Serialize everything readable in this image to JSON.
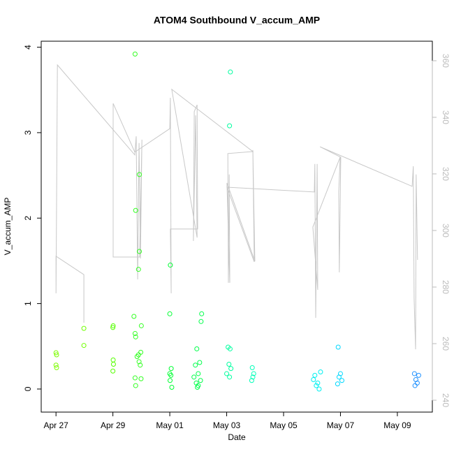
{
  "chart_data": {
    "type": "scatter",
    "title": "ATOM4 Southbound V_accum_AMP",
    "xlabel": "Date",
    "ylabel": "V_accum_AMP",
    "x": [
      0,
      0.02,
      0,
      0.02,
      0.98,
      0.98,
      2.01,
      2.0,
      2.01,
      2.02,
      2.0,
      2.78,
      2.93,
      2.8,
      2.93,
      2.9,
      2.74,
      3.0,
      2.78,
      2.8,
      2.98,
      2.9,
      2.85,
      2.92,
      2.96,
      2.78,
      2.99,
      2.8,
      4.02,
      4.0,
      4.05,
      4.0,
      4.04,
      4.01,
      4.07,
      5.12,
      5.1,
      4.95,
      5.05,
      4.9,
      5.0,
      4.85,
      5.08,
      4.93,
      5.0,
      4.97,
      6.13,
      6.1,
      6.05,
      6.12,
      6.08,
      6.15,
      6.0,
      6.1,
      6.9,
      6.95,
      6.92,
      6.88,
      9.3,
      9.1,
      9.05,
      9.2,
      9.15,
      9.25,
      9.92,
      10.0,
      9.95,
      10.05,
      9.9,
      12.6,
      12.75,
      12.65,
      12.7,
      12.62
    ],
    "values": [
      0.425,
      0.4,
      0.28,
      0.25,
      0.71,
      0.51,
      0.74,
      0.72,
      0.34,
      0.29,
      0.21,
      3.92,
      2.51,
      2.09,
      1.61,
      1.4,
      0.85,
      0.74,
      0.65,
      0.61,
      0.43,
      0.4,
      0.38,
      0.32,
      0.28,
      0.13,
      0.12,
      0.04,
      1.45,
      0.88,
      0.24,
      0.18,
      0.16,
      0.1,
      0.02,
      0.88,
      0.79,
      0.47,
      0.31,
      0.28,
      0.18,
      0.14,
      0.1,
      0.07,
      0.04,
      0.02,
      3.71,
      3.08,
      0.49,
      0.47,
      0.29,
      0.24,
      0.18,
      0.14,
      0.25,
      0.18,
      0.14,
      0.1,
      0.2,
      0.16,
      0.11,
      0.07,
      0.04,
      0,
      0.49,
      0.18,
      0.14,
      0.1,
      0.06,
      0.18,
      0.16,
      0.11,
      0.07,
      0.04
    ],
    "colors": [
      "#7cfc00",
      "#7cfc00",
      "#7cfc00",
      "#7cfc00",
      "#70ff00",
      "#70ff00",
      "#55ff00",
      "#55ff00",
      "#55ff00",
      "#55ff00",
      "#55ff00",
      "#33ff22",
      "#33ff22",
      "#33ff22",
      "#33ff22",
      "#33ff22",
      "#33ff22",
      "#33ff22",
      "#33ff22",
      "#33ff22",
      "#33ff22",
      "#33ff22",
      "#33ff22",
      "#33ff22",
      "#33ff22",
      "#33ff22",
      "#33ff22",
      "#33ff22",
      "#00ff33",
      "#00ff33",
      "#00ff33",
      "#00ff33",
      "#00ff33",
      "#00ff33",
      "#00ff33",
      "#00ff4a",
      "#00ff4a",
      "#00ff4a",
      "#00ff4a",
      "#00ff4a",
      "#00ff4a",
      "#00ff4a",
      "#00ff4a",
      "#00ff4a",
      "#00ff4a",
      "#00ff4a",
      "#00ffa0",
      "#00ffa0",
      "#00ffa0",
      "#00ffa0",
      "#00ffa0",
      "#00ffa0",
      "#00ffa0",
      "#00ffa0",
      "#00ffb8",
      "#00ffb8",
      "#00ffb8",
      "#00ffb8",
      "#00f0f0",
      "#00f0f0",
      "#00f0f0",
      "#00f0f0",
      "#00f0f0",
      "#00f0f0",
      "#00d8ff",
      "#00d8ff",
      "#00d8ff",
      "#00d8ff",
      "#00d8ff",
      "#1e90ff",
      "#1e90ff",
      "#1e90ff",
      "#1e90ff",
      "#1e90ff"
    ],
    "xlim": [
      -0.52,
      13.23
    ],
    "xticks": [
      {
        "value": 0,
        "label": "Apr 27"
      },
      {
        "value": 2,
        "label": "Apr 29"
      },
      {
        "value": 4,
        "label": "May 01"
      },
      {
        "value": 6,
        "label": "May 03"
      },
      {
        "value": 8,
        "label": "May 05"
      },
      {
        "value": 10,
        "label": "May 07"
      },
      {
        "value": 12,
        "label": "May 09"
      }
    ],
    "ylim": [
      -0.27,
      4.07
    ],
    "yticks": [
      0,
      1,
      2,
      3,
      4
    ],
    "y2lim": [
      235.8,
      366.9
    ],
    "y2ticks": [
      240,
      260,
      280,
      300,
      320,
      340,
      360
    ],
    "y2_color": "#bbbbbb",
    "line": {
      "axis": "y2",
      "color": "#c8c8c8",
      "x": [
        0.98,
        0.98,
        0,
        0,
        0.05,
        2.77,
        2.82,
        2.87,
        2.92,
        2.97,
        3.02,
        2.94,
        2.01,
        2.01,
        2.77,
        4.0,
        4.02,
        4.05,
        4.02,
        4.98,
        4.96,
        4.86,
        4.83,
        4.91,
        4.96,
        4.07,
        6.92,
        6.04,
        6.06,
        6.09,
        6.11,
        6.01,
        6.99,
        6.92,
        6.97,
        6.01,
        9.08,
        9.1,
        9.13,
        9.18,
        9.2,
        9.03,
        9.99,
        9.94,
        9.96,
        10.01,
        9.28,
        12.52,
        12.56,
        12.59,
        12.64,
        12.66,
        12.71
      ],
      "values": [
        267.4,
        284.4,
        290.9,
        277.8,
        358.5,
        326.7,
        333.3,
        282.7,
        330.9,
        290.1,
        332.1,
        290.6,
        290.6,
        344.9,
        327.7,
        336.0,
        346.9,
        277.8,
        300.5,
        300.5,
        344.4,
        342.0,
        296.3,
        340.7,
        297.5,
        349.9,
        327.9,
        327.2,
        281.5,
        319.8,
        281.5,
        316.8,
        289.1,
        328.4,
        288.9,
        315.3,
        313.6,
        323.5,
        269.1,
        323.5,
        279.0,
        301.2,
        325.9,
        313.6,
        285.2,
        325.9,
        329.6,
        315.6,
        322.7,
        276.0,
        258.0,
        319.8,
        289.6
      ]
    }
  }
}
